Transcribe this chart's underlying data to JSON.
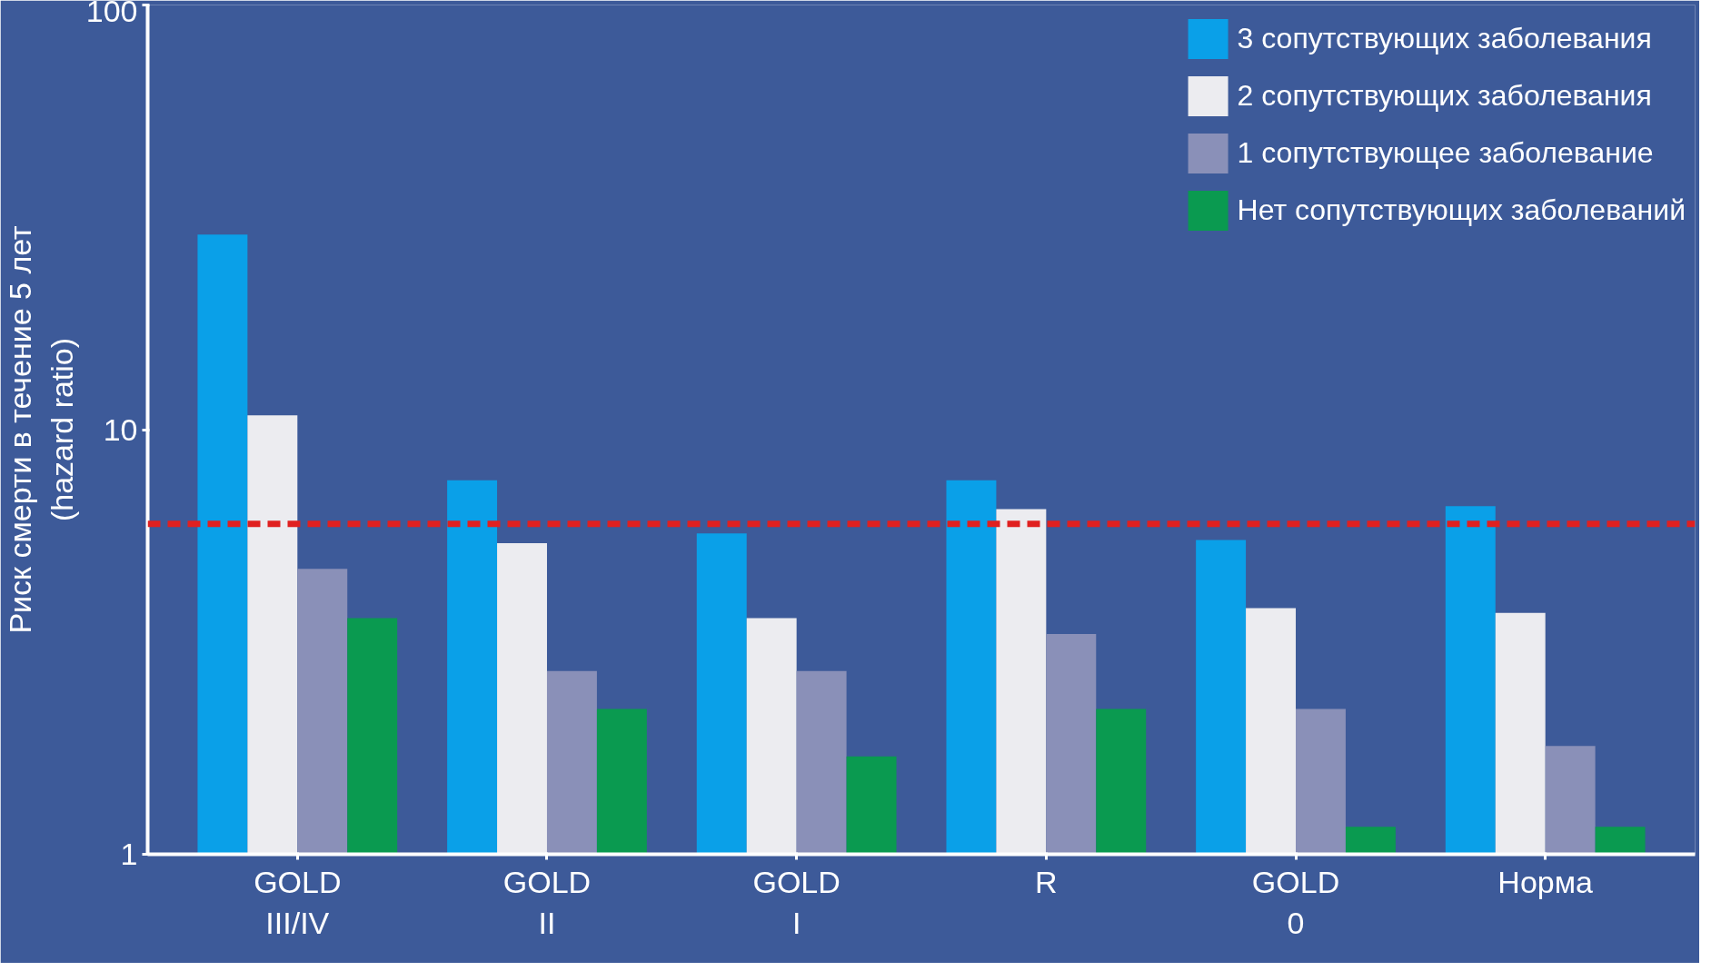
{
  "chart_data": {
    "type": "bar",
    "ylabel": "Риск смерти в течение 5 лет\n(hazard ratio)",
    "log": true,
    "ylim": [
      1,
      100
    ],
    "yticks": [
      1,
      10,
      100
    ],
    "grid": false,
    "legend": "top right",
    "categories": [
      "GOLD\nIII/IV",
      "GOLD\nII",
      "GOLD\nI",
      "R",
      "GOLD\n0",
      "Норма"
    ],
    "series": [
      {
        "name": "3 сопутствующих заболевания",
        "color": "#0aa0e8",
        "values": [
          28.8,
          7.6,
          5.7,
          7.6,
          5.5,
          6.6
        ]
      },
      {
        "name": "2 сопутствующих заболевания",
        "color": "#ececf0",
        "values": [
          10.8,
          5.4,
          3.6,
          6.5,
          3.8,
          3.7
        ]
      },
      {
        "name": "1 сопутствующее заболевание",
        "color": "#8a90b8",
        "values": [
          4.7,
          2.7,
          2.7,
          3.3,
          2.2,
          1.8
        ]
      },
      {
        "name": "Нет сопутствующих заболеваний",
        "color": "#0a9a50",
        "values": [
          3.6,
          2.2,
          1.7,
          2.2,
          1.16,
          1.16
        ]
      }
    ],
    "ref_lines": [
      {
        "axis": "y",
        "value": 6.0,
        "color": "#e02020",
        "line_style": "dashed"
      }
    ]
  }
}
